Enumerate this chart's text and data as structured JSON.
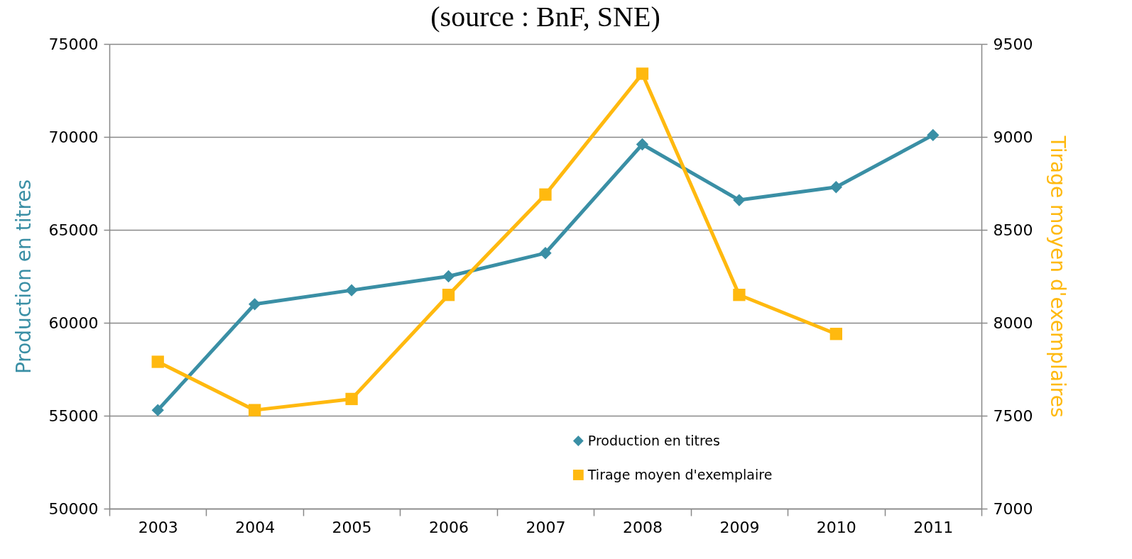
{
  "chart_data": {
    "type": "line",
    "title": "(source : BnF, SNE)",
    "ylabel": "Production en titres",
    "y2label": "Tirage moyen d'exemplaires",
    "categories": [
      "2003",
      "2004",
      "2005",
      "2006",
      "2007",
      "2008",
      "2009",
      "2010",
      "2011"
    ],
    "series": [
      {
        "name": "Production en titres",
        "color": "#3a8fa5",
        "marker": "diamond",
        "values": [
          55300,
          61000,
          61750,
          62500,
          63750,
          69600,
          66600,
          67300,
          70100
        ]
      },
      {
        "name": "Tirage moyen d'exemplaire",
        "color": "#ffb90f",
        "marker": "square",
        "axis": "y2",
        "values": [
          7790,
          7530,
          7590,
          8150,
          8690,
          9340,
          8150,
          7940,
          null
        ]
      }
    ],
    "ylim": [
      50000,
      75000
    ],
    "yticks": [
      50000,
      55000,
      60000,
      65000,
      70000,
      75000
    ],
    "y2lim": [
      7000,
      9500
    ],
    "y2ticks": [
      7000,
      7500,
      8000,
      8500,
      9000,
      9500
    ],
    "grid": "y",
    "legend": "bottom"
  }
}
